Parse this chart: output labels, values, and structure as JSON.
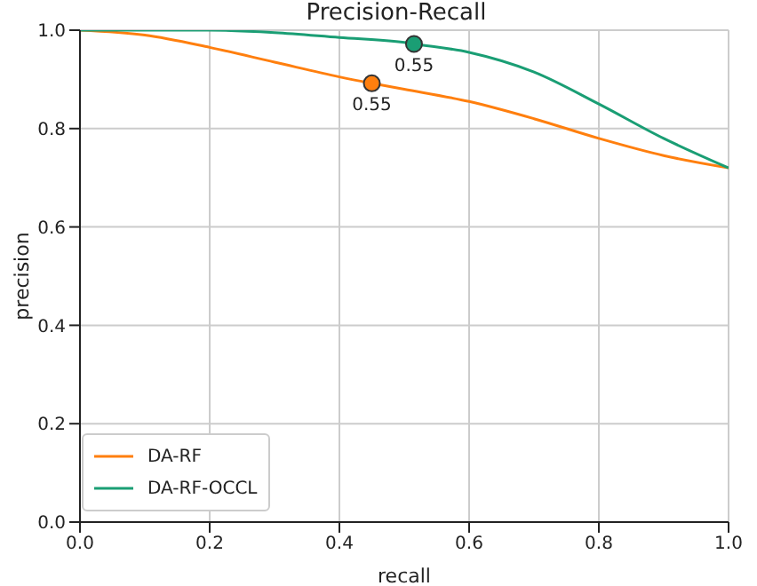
{
  "chart_data": {
    "type": "line",
    "title": "Precision-Recall",
    "xlabel": "recall",
    "ylabel": "precision",
    "xlim": [
      0,
      1
    ],
    "ylim": [
      0,
      1
    ],
    "xticks": [
      {
        "value": 0,
        "label": "0.0"
      },
      0.2,
      0.4,
      0.6,
      0.8,
      {
        "value": 1,
        "label": "1.0"
      }
    ],
    "yticks": [
      {
        "value": 0,
        "label": "0.0"
      },
      0.2,
      0.4,
      0.6,
      0.8,
      {
        "value": 1,
        "label": "1.0"
      }
    ],
    "grid": true,
    "legend": "bottom left",
    "marker": "none",
    "series": [
      {
        "name": "DA-RF",
        "color": "#ff7f0e",
        "x": [
          0,
          0.1,
          0.2,
          0.3,
          0.4,
          0.45,
          0.5,
          0.6,
          0.7,
          0.8,
          0.9,
          1.0
        ],
        "values": [
          1.0,
          0.99,
          0.965,
          0.935,
          0.905,
          0.892,
          0.88,
          0.855,
          0.82,
          0.78,
          0.745,
          0.72
        ]
      },
      {
        "name": "DA-RF-OCCL",
        "color": "#1a9e74",
        "x": [
          0,
          0.2,
          0.3,
          0.4,
          0.5,
          0.515,
          0.6,
          0.7,
          0.8,
          0.9,
          1.0
        ],
        "values": [
          1.0,
          1.0,
          0.995,
          0.985,
          0.975,
          0.972,
          0.955,
          0.915,
          0.85,
          0.78,
          0.72
        ]
      },
      {
        "type": "scatter",
        "marker": "circle",
        "color": "#ff7f0e",
        "x": [
          0.45
        ],
        "values": [
          0.892
        ]
      },
      {
        "type": "scatter",
        "marker": "circle",
        "color": "#1a9e74",
        "x": [
          0.515
        ],
        "values": [
          0.972
        ]
      }
    ],
    "annotations": [
      {
        "text": "0.55",
        "x": 0.45,
        "y": 0.892
      },
      {
        "text": "0.55",
        "x": 0.515,
        "y": 0.972
      }
    ]
  }
}
